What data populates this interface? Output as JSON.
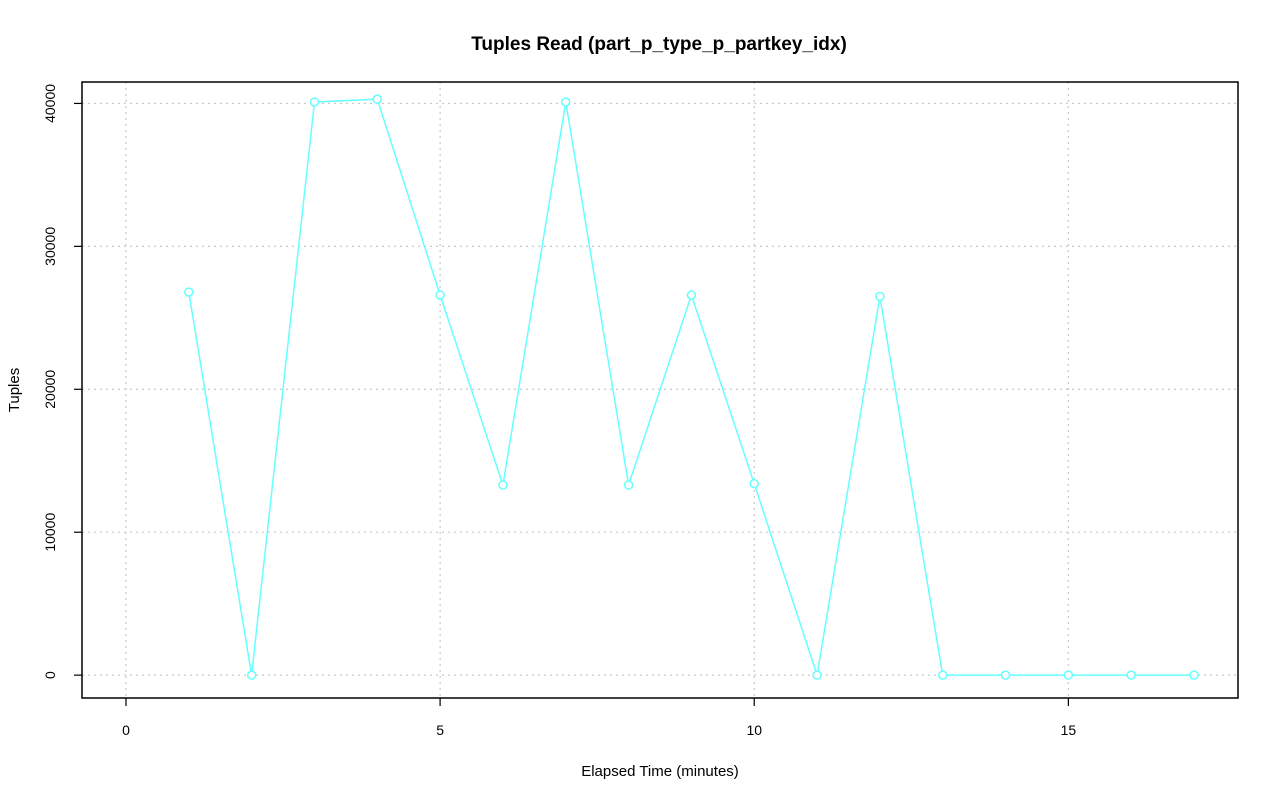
{
  "chart_data": {
    "type": "line",
    "title": "Tuples Read (part_p_type_p_partkey_idx)",
    "xlabel": "Elapsed Time (minutes)",
    "ylabel": "Tuples",
    "xlim": [
      -0.7,
      17.7
    ],
    "ylim": [
      -1600,
      41500
    ],
    "xticks": [
      0,
      5,
      10,
      15
    ],
    "yticks": [
      0,
      10000,
      20000,
      30000,
      40000
    ],
    "grid": true,
    "color": "#66ffff",
    "series": [
      {
        "x": [
          1,
          2,
          3,
          4,
          5,
          6,
          7,
          8,
          9,
          10,
          11,
          12,
          13,
          14,
          15,
          16,
          17
        ],
        "values": [
          26800,
          0,
          40100,
          40300,
          26600,
          13300,
          40100,
          13300,
          26600,
          13400,
          0,
          26500,
          0,
          0,
          0,
          0,
          0
        ]
      }
    ]
  }
}
